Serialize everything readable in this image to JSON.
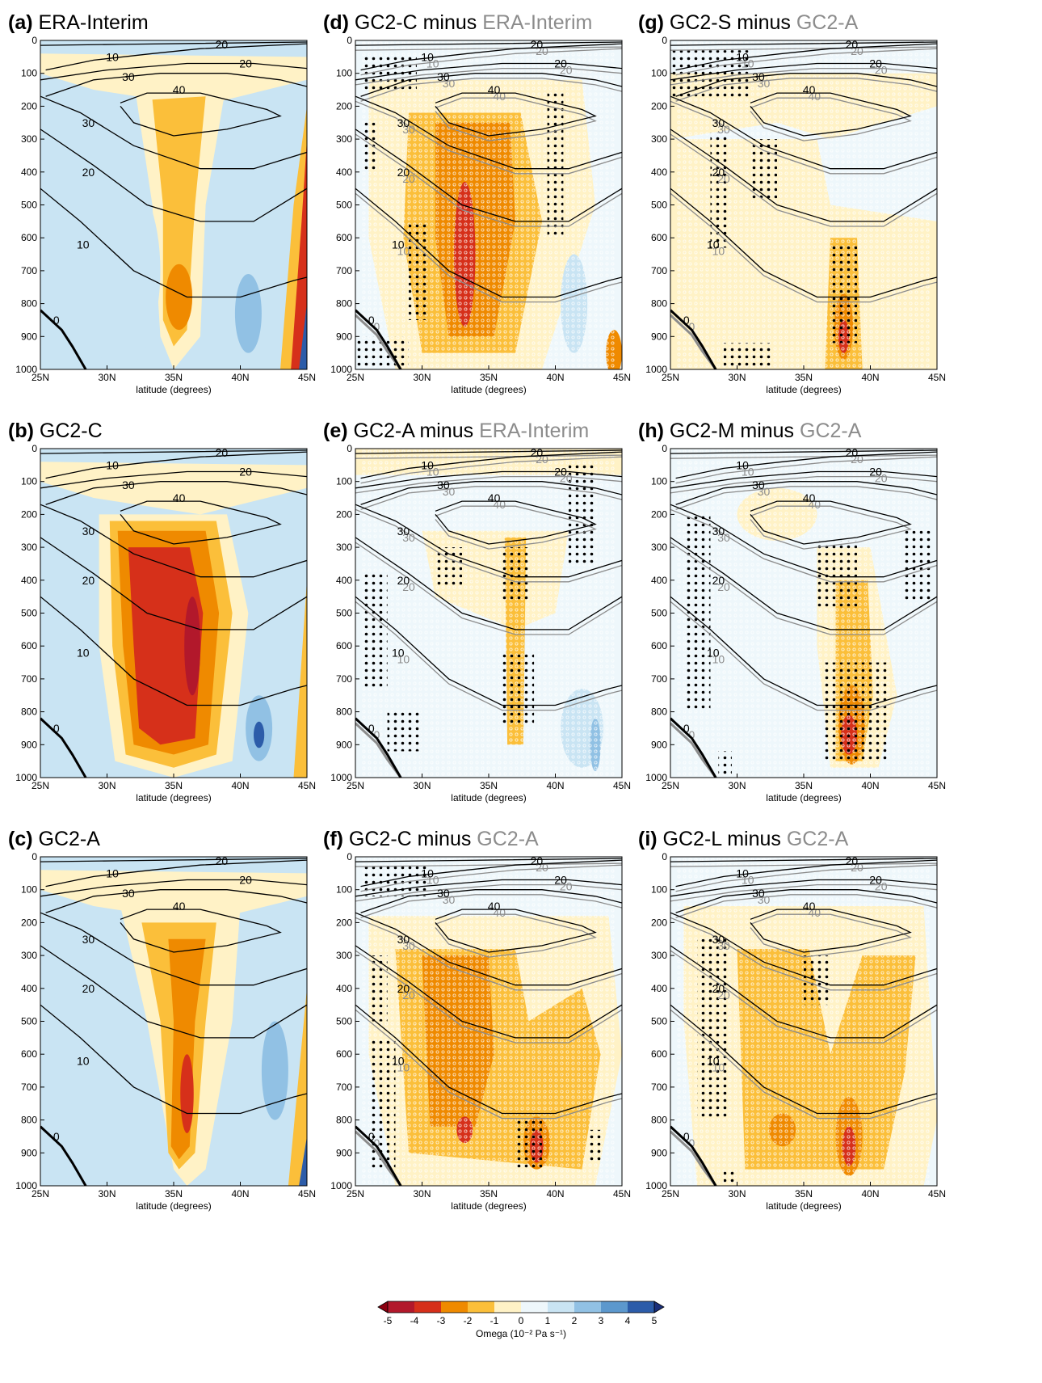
{
  "figure": {
    "x_ticks": [
      "25N",
      "30N",
      "35N",
      "40N",
      "45N"
    ],
    "y_ticks": [
      "0",
      "100",
      "200",
      "300",
      "400",
      "500",
      "600",
      "700",
      "800",
      "900",
      "1000"
    ],
    "xlabel": "latitude (degrees)"
  },
  "panels": [
    {
      "id": "a",
      "title_dark": "(a) ERA-Interim",
      "title_gray": ""
    },
    {
      "id": "d",
      "title_dark": "(d) GC2-C minus ",
      "title_gray": "ERA-Interim"
    },
    {
      "id": "g",
      "title_dark": "(g) GC2-S minus ",
      "title_gray": "GC2-A"
    },
    {
      "id": "b",
      "title_dark": "(b) GC2-C",
      "title_gray": ""
    },
    {
      "id": "e",
      "title_dark": "(e) GC2-A minus ",
      "title_gray": "ERA-Interim"
    },
    {
      "id": "h",
      "title_dark": "(h) GC2-M minus ",
      "title_gray": "GC2-A"
    },
    {
      "id": "c",
      "title_dark": "(c) GC2-A",
      "title_gray": ""
    },
    {
      "id": "f",
      "title_dark": "(f) GC2-C minus ",
      "title_gray": "GC2-A"
    },
    {
      "id": "i",
      "title_dark": "(i) GC2-L minus ",
      "title_gray": "GC2-A"
    }
  ],
  "colorbar": {
    "labels": [
      "-5",
      "-4",
      "-3",
      "-2",
      "-1",
      "0",
      "1",
      "2",
      "3",
      "4",
      "5"
    ],
    "colors": [
      "#b2182b",
      "#d6301a",
      "#ef8a00",
      "#fbbf3a",
      "#fff2c6",
      "#eef7fb",
      "#c9e4f3",
      "#91c1e4",
      "#5c98cd",
      "#2c5ca9"
    ],
    "label": "Omega (10⁻² Pa s⁻¹)"
  },
  "chart_data": {
    "type": "heatmap",
    "description_fields": "Latitude–pressure cross sections of omega (shading) with wind contours",
    "x_range": [
      "25N",
      "45N"
    ],
    "y_range_hPa": [
      0,
      1000
    ],
    "y_inverted": true,
    "contour_levels_labeled": [
      0,
      10,
      20,
      30,
      40
    ],
    "colorbar_levels": [
      -5,
      -4,
      -3,
      -2,
      -1,
      0,
      1,
      2,
      3,
      4,
      5
    ],
    "panels": [
      {
        "panel": "a",
        "max_ascent_lat": "36N",
        "max_ascent_hPa": 850,
        "min_omega": -3,
        "contour_max": 40
      },
      {
        "panel": "b",
        "max_ascent_lat": "36N",
        "max_ascent_hPa": 600,
        "min_omega": -5,
        "contour_max": 40
      },
      {
        "panel": "c",
        "max_ascent_lat": "36N",
        "max_ascent_hPa": 700,
        "min_omega": -4,
        "contour_max": 40
      },
      {
        "panel": "d",
        "max_ascent_lat": "33N",
        "max_ascent_hPa": 600,
        "min_omega": -4
      },
      {
        "panel": "e",
        "max_ascent_lat": "36N",
        "max_ascent_hPa": 600,
        "min_omega": -2
      },
      {
        "panel": "f",
        "max_ascent_lat": "38N",
        "max_ascent_hPa": 880,
        "min_omega": -4
      },
      {
        "panel": "g",
        "max_ascent_lat": "38N",
        "max_ascent_hPa": 880,
        "min_omega": -4
      },
      {
        "panel": "h",
        "max_ascent_lat": "38N",
        "max_ascent_hPa": 880,
        "min_omega": -4
      },
      {
        "panel": "i",
        "max_ascent_lat": "38N",
        "max_ascent_hPa": 880,
        "min_omega": -4
      }
    ]
  }
}
